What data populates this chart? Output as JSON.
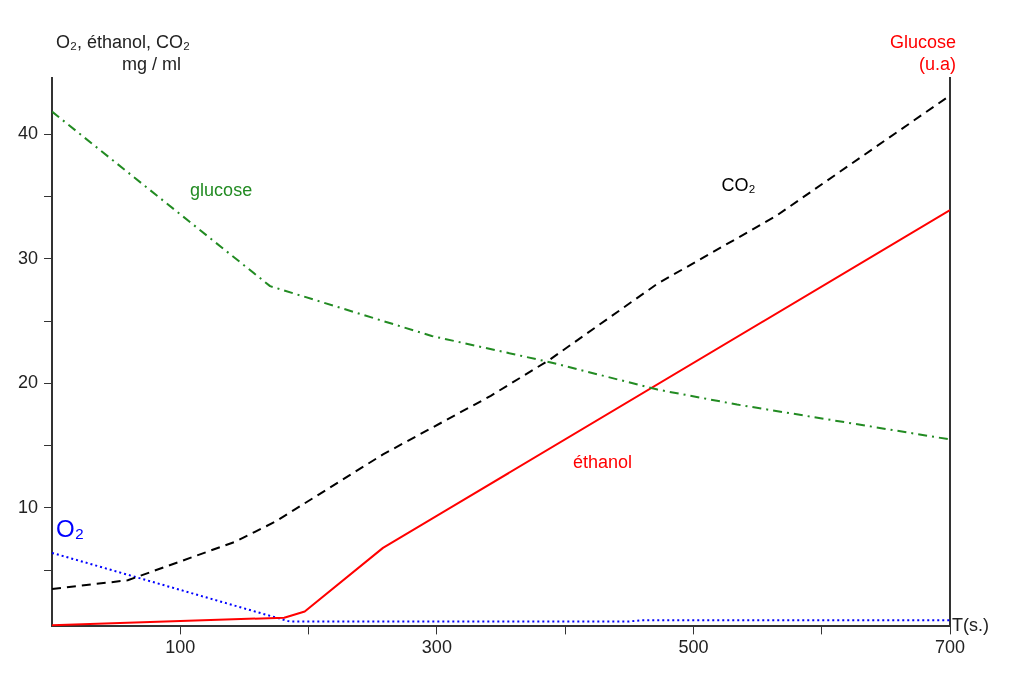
{
  "chart_data": {
    "type": "line",
    "xlabel": "T(s.)",
    "ylabel": "O₂, éthanol, CO₂\nmg / ml",
    "y2label": "Glucose\n(u.a)",
    "xlim": [
      0,
      700
    ],
    "xticks": [
      {
        "value": 100,
        "label": "100"
      },
      {
        "value": 200,
        "label": null
      },
      {
        "value": 300,
        "label": "300"
      },
      {
        "value": 400,
        "label": null
      },
      {
        "value": 500,
        "label": "500"
      },
      {
        "value": 600,
        "label": null
      },
      {
        "value": 700,
        "label": "700"
      }
    ],
    "ylim": [
      0.5,
      44.5
    ],
    "yticks": [
      {
        "value": 5,
        "label": null
      },
      {
        "value": 10,
        "label": "10"
      },
      {
        "value": 15,
        "label": null
      },
      {
        "value": 20,
        "label": "20"
      },
      {
        "value": 25,
        "label": null
      },
      {
        "value": 30,
        "label": "30"
      },
      {
        "value": 35,
        "label": null
      },
      {
        "value": 40,
        "label": "40"
      }
    ],
    "grid": false,
    "legend": false,
    "marker": "none",
    "series": [
      {
        "name": "glucose",
        "color": "#228b22",
        "line_style": "dashdot",
        "x": [
          0,
          170,
          296,
          388,
          472,
          534,
          700
        ],
        "values": [
          41.8,
          27.8,
          23.8,
          21.7,
          19.5,
          18.3,
          15.5
        ]
      },
      {
        "name": "CO₂",
        "color": "#000000",
        "line_style": "dashed",
        "x": [
          0,
          59,
          143,
          174,
          258,
          342,
          388,
          472,
          564,
          700
        ],
        "values": [
          3.5,
          4.2,
          7.3,
          8.9,
          14.3,
          19.0,
          21.9,
          28.0,
          33.4,
          43.1
        ]
      },
      {
        "name": "éthanol",
        "color": "#ff0000",
        "line_style": "solid",
        "x": [
          0,
          181,
          197,
          258,
          700
        ],
        "values": [
          0.6,
          1.2,
          1.7,
          6.8,
          33.9
        ]
      },
      {
        "name": "O₂",
        "color": "#0000ff",
        "line_style": "dotted",
        "x": [
          0,
          185,
          450,
          460,
          700
        ],
        "values": [
          6.4,
          0.9,
          0.9,
          1.0,
          1.0
        ]
      }
    ]
  }
}
